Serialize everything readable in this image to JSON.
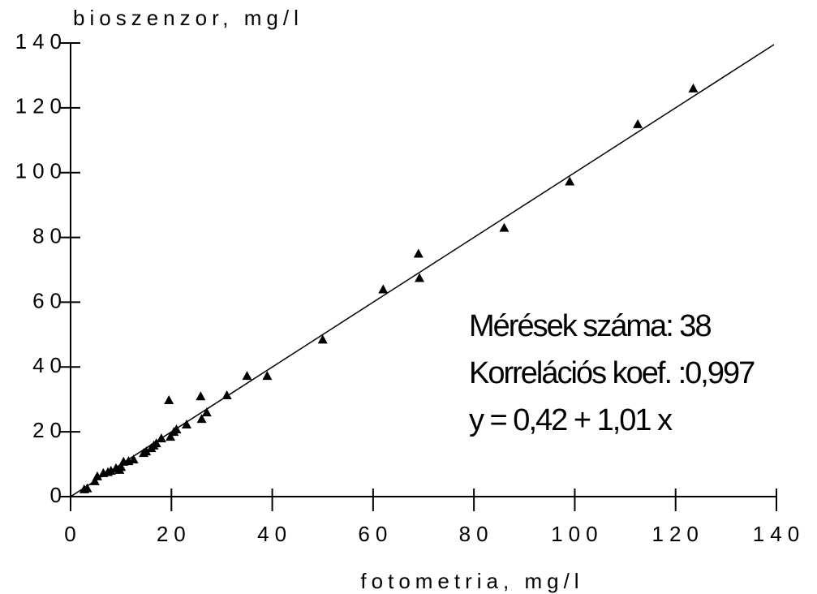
{
  "chart_data": {
    "type": "scatter",
    "x_label": "fotometria, mg/l",
    "y_label": "bioszenzor, mg/l",
    "annotations": [
      "Mérések száma: 38",
      "Korrelációs koef. :0,997",
      "y = 0,42 + 1,01 x"
    ],
    "color": "#000000",
    "x": [
      2.7,
      3.3,
      4.8,
      5.3,
      6.5,
      7.4,
      8,
      9,
      9.7,
      10,
      10.5,
      11.5,
      12.5,
      14.5,
      15,
      16,
      16.5,
      17,
      18,
      19.5,
      19.8,
      20.5,
      21,
      23,
      25.8,
      26,
      27,
      31,
      35,
      39,
      50,
      62,
      69,
      69.2,
      86,
      99,
      112.5,
      123.5
    ],
    "values": [
      2.3,
      2.6,
      4.8,
      6.3,
      7.3,
      7.6,
      8,
      8.8,
      8.3,
      9.2,
      10.8,
      11,
      11.5,
      13.5,
      14,
      15,
      15.8,
      16.5,
      18,
      29.8,
      18.5,
      20,
      20.8,
      22.3,
      31,
      24,
      26,
      31.3,
      37.3,
      37.3,
      48.5,
      64,
      75,
      67.5,
      83,
      97.3,
      115,
      126
    ],
    "fit_line": {
      "x": [
        0,
        139.5
      ],
      "y": [
        0,
        139.5
      ]
    },
    "xlim": [
      0,
      140
    ],
    "ylim": [
      0,
      140
    ],
    "xticks": [
      0,
      20,
      40,
      60,
      80,
      100,
      120,
      140
    ],
    "yticks": [
      0,
      20,
      40,
      60,
      80,
      100,
      120,
      140
    ]
  }
}
